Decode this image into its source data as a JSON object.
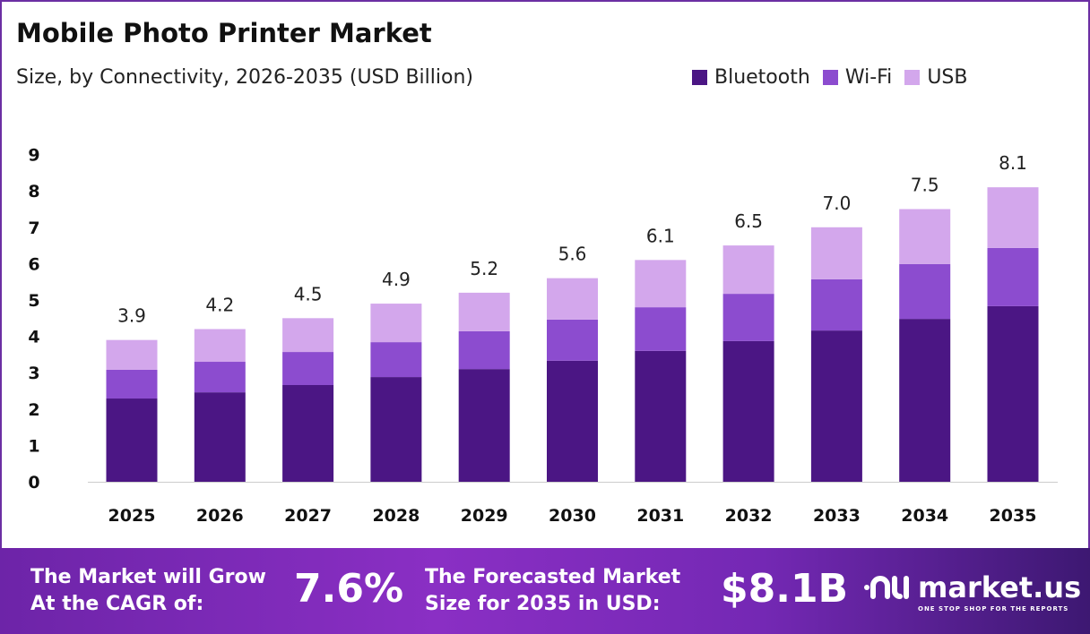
{
  "chart_data": {
    "type": "bar",
    "stacked": true,
    "title": "Mobile Photo Printer Market",
    "subtitle": "Size, by Connectivity, 2026-2035 (USD Billion)",
    "categories": [
      "2025",
      "2026",
      "2027",
      "2028",
      "2029",
      "2030",
      "2031",
      "2032",
      "2033",
      "2034",
      "2035"
    ],
    "series": [
      {
        "name": "Bluetooth",
        "color": "#4b1684",
        "values": [
          2.29,
          2.46,
          2.66,
          2.88,
          3.1,
          3.33,
          3.6,
          3.87,
          4.16,
          4.48,
          4.83
        ]
      },
      {
        "name": "Wi-Fi",
        "color": "#8c4ccf",
        "values": [
          0.79,
          0.84,
          0.91,
          0.96,
          1.04,
          1.13,
          1.2,
          1.3,
          1.41,
          1.51,
          1.6
        ]
      },
      {
        "name": "USB",
        "color": "#d3a7ec",
        "values": [
          0.82,
          0.9,
          0.93,
          1.06,
          1.06,
          1.14,
          1.3,
          1.33,
          1.43,
          1.51,
          1.67
        ]
      }
    ],
    "totals": [
      "3.9",
      "4.2",
      "4.5",
      "4.9",
      "5.2",
      "5.6",
      "6.1",
      "6.5",
      "7.0",
      "7.5",
      "8.1"
    ],
    "yticks": [
      "0",
      "1",
      "2",
      "3",
      "4",
      "5",
      "6",
      "7",
      "8",
      "9"
    ],
    "ylim": [
      0,
      9
    ],
    "grid": false,
    "legend": "top-right",
    "xlabel": "",
    "ylabel": ""
  },
  "footer": {
    "cagr_label": [
      "The Market will Grow",
      "At the CAGR of:"
    ],
    "cagr_value": "7.6%",
    "forecast_label": [
      "The Forecasted Market",
      "Size for 2035 in USD:"
    ],
    "forecast_value": "$8.1B",
    "brand": "market.us",
    "tagline": "ONE STOP SHOP FOR THE REPORTS"
  }
}
